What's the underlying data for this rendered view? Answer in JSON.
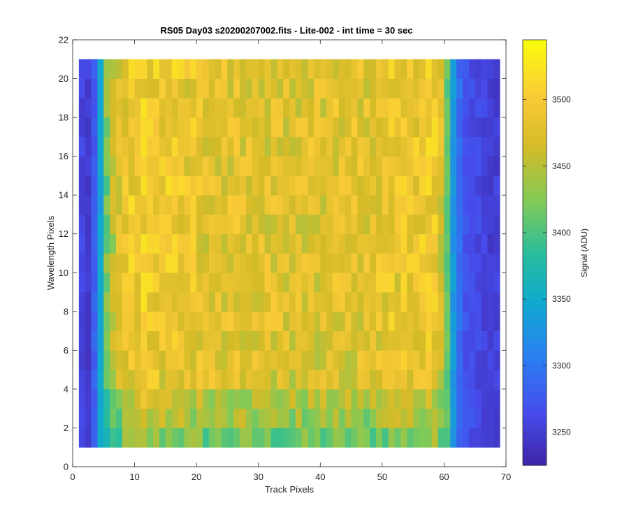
{
  "chart_data": {
    "type": "heatmap",
    "title": "RS05 Day03  s20200207002.fits - Lite-002 - int time = 30 sec",
    "xlabel": "Track Pixels",
    "ylabel": "Wavelength Pixels",
    "xlim": [
      0,
      70
    ],
    "ylim": [
      0,
      22
    ],
    "xticks": [
      "0",
      "10",
      "20",
      "30",
      "40",
      "50",
      "60",
      "70"
    ],
    "yticks": [
      "0",
      "2",
      "4",
      "6",
      "8",
      "10",
      "12",
      "14",
      "16",
      "18",
      "20",
      "22"
    ],
    "x_range": [
      1,
      69
    ],
    "y_range": [
      1,
      21
    ],
    "colormap": "parula",
    "colorbar": {
      "label": "Signal (ADU)",
      "clim": [
        3225,
        3545
      ],
      "ticks": [
        "3250",
        "3300",
        "3350",
        "3400",
        "3450",
        "3500"
      ]
    },
    "row_profile": [
      3255,
      3250,
      3280,
      3340,
      3420,
      3450,
      3470,
      3490,
      3495,
      3495,
      3500,
      3495,
      3495,
      3490,
      3495,
      3495,
      3490,
      3485,
      3490,
      3485,
      3480,
      3485,
      3480,
      3480,
      3480,
      3485,
      3480,
      3480,
      3480,
      3480,
      3478,
      3478,
      3478,
      3475,
      3478,
      3478,
      3478,
      3480,
      3478,
      3478,
      3480,
      3480,
      3478,
      3480,
      3480,
      3480,
      3480,
      3482,
      3485,
      3485,
      3490,
      3485,
      3490,
      3488,
      3490,
      3495,
      3495,
      3495,
      3470,
      3410,
      3330,
      3290,
      3270,
      3265,
      3260,
      3255,
      3250,
      3250
    ],
    "bottom_row_offsets": [
      -30,
      -20,
      -15,
      -10,
      -6,
      -3,
      -1,
      0,
      0,
      0,
      0,
      0,
      0,
      0,
      0,
      0,
      0,
      0,
      0,
      0
    ]
  }
}
